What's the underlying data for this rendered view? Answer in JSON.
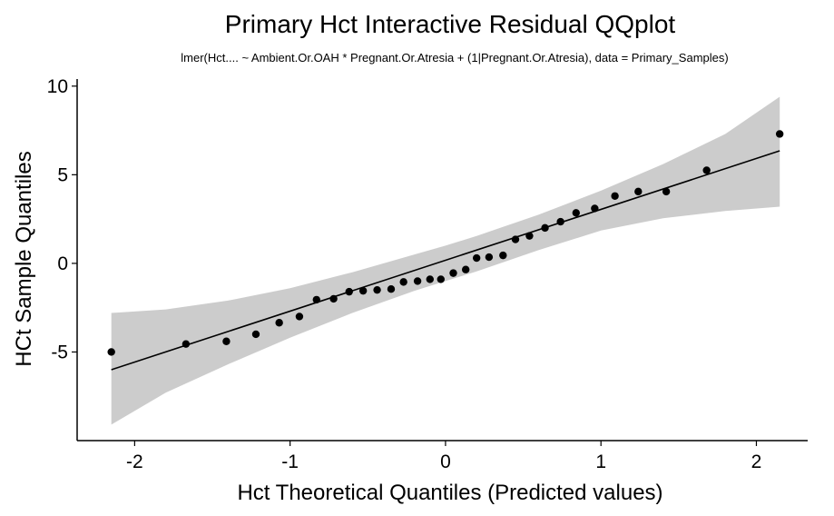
{
  "chart_data": {
    "type": "scatter",
    "title": "Primary Hct Interactive Residual QQplot",
    "subtitle": "lmer(Hct.... ~ Ambient.Or.OAH * Pregnant.Or.Atresia + (1|Pregnant.Or.Atresia), data = Primary_Samples)",
    "xlabel": "Hct Theoretical Quantiles (Predicted values)",
    "ylabel": "HCt Sample Quantiles",
    "xlim": [
      -2.37,
      2.33
    ],
    "ylim": [
      -10.0,
      10.4
    ],
    "x_ticks": [
      -2,
      -1,
      0,
      1,
      2
    ],
    "x_tick_labels": [
      "-2",
      "-1",
      "0",
      "1",
      "2"
    ],
    "y_ticks": [
      -5,
      0,
      5,
      10
    ],
    "y_tick_labels": [
      "-5",
      "0",
      "5",
      "10"
    ],
    "grid": false,
    "colors": {
      "points": "#000000",
      "line": "#000000",
      "band": "#cccccc"
    },
    "points": [
      {
        "x": -2.15,
        "y": -5.0
      },
      {
        "x": -1.67,
        "y": -4.55
      },
      {
        "x": -1.41,
        "y": -4.4
      },
      {
        "x": -1.22,
        "y": -4.0
      },
      {
        "x": -1.07,
        "y": -3.35
      },
      {
        "x": -0.94,
        "y": -3.0
      },
      {
        "x": -0.83,
        "y": -2.05
      },
      {
        "x": -0.72,
        "y": -2.0
      },
      {
        "x": -0.62,
        "y": -1.6
      },
      {
        "x": -0.53,
        "y": -1.55
      },
      {
        "x": -0.44,
        "y": -1.5
      },
      {
        "x": -0.35,
        "y": -1.45
      },
      {
        "x": -0.27,
        "y": -1.05
      },
      {
        "x": -0.18,
        "y": -1.0
      },
      {
        "x": -0.1,
        "y": -0.9
      },
      {
        "x": -0.03,
        "y": -0.9
      },
      {
        "x": 0.05,
        "y": -0.55
      },
      {
        "x": 0.13,
        "y": -0.35
      },
      {
        "x": 0.2,
        "y": 0.3
      },
      {
        "x": 0.28,
        "y": 0.35
      },
      {
        "x": 0.37,
        "y": 0.45
      },
      {
        "x": 0.45,
        "y": 1.35
      },
      {
        "x": 0.54,
        "y": 1.55
      },
      {
        "x": 0.64,
        "y": 2.0
      },
      {
        "x": 0.74,
        "y": 2.35
      },
      {
        "x": 0.84,
        "y": 2.85
      },
      {
        "x": 0.96,
        "y": 3.1
      },
      {
        "x": 1.09,
        "y": 3.8
      },
      {
        "x": 1.24,
        "y": 4.05
      },
      {
        "x": 1.42,
        "y": 4.05
      },
      {
        "x": 1.68,
        "y": 5.25
      },
      {
        "x": 2.15,
        "y": 7.3
      }
    ],
    "reference_line": {
      "x": [
        -2.15,
        2.15
      ],
      "y": [
        -6.0,
        6.35
      ]
    },
    "confidence_band": {
      "x": [
        -2.15,
        -1.8,
        -1.4,
        -1.0,
        -0.6,
        -0.2,
        0.0,
        0.2,
        0.6,
        1.0,
        1.4,
        1.8,
        2.15
      ],
      "lower": [
        -9.1,
        -7.3,
        -5.7,
        -4.2,
        -2.8,
        -1.55,
        -1.0,
        -0.45,
        0.75,
        1.85,
        2.55,
        2.95,
        3.2
      ],
      "upper": [
        -2.8,
        -2.6,
        -2.1,
        -1.4,
        -0.5,
        0.5,
        1.0,
        1.55,
        2.75,
        4.1,
        5.6,
        7.3,
        9.4
      ]
    }
  }
}
